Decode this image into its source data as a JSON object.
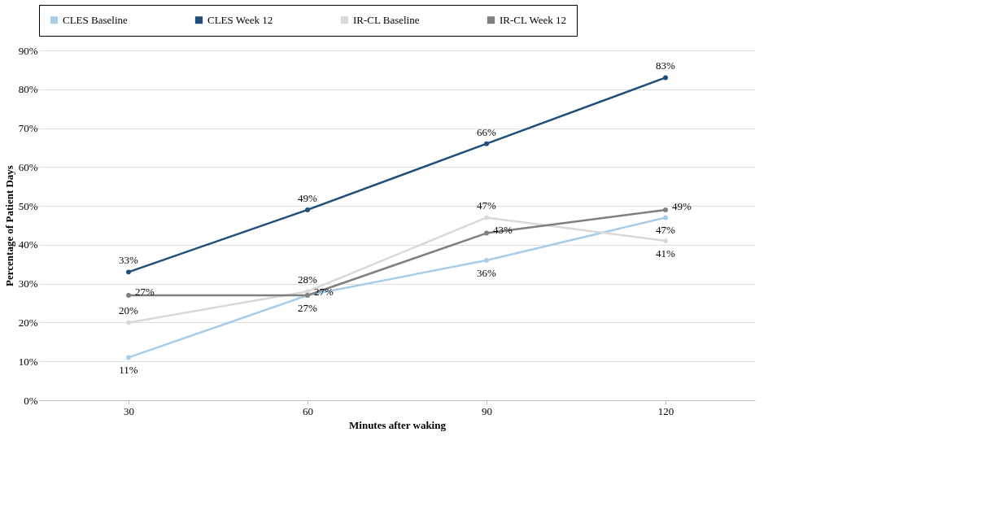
{
  "chart_data": {
    "type": "line",
    "xlabel": "Minutes after waking",
    "ylabel": "Percentage of Patient Days",
    "categories": [
      "30",
      "60",
      "90",
      "120"
    ],
    "series": [
      {
        "name": "CLES Baseline",
        "color": "#a9cde9",
        "values": [
          11,
          27,
          36,
          47
        ],
        "value_labels": [
          "11%",
          "27%",
          "36%",
          "47%"
        ]
      },
      {
        "name": "CLES Week 12",
        "color": "#1f4e79",
        "values": [
          33,
          49,
          66,
          83
        ],
        "value_labels": [
          "33%",
          "49%",
          "66%",
          "83%"
        ]
      },
      {
        "name": "IR-CL Baseline",
        "color": "#d9d9d9",
        "values": [
          20,
          28,
          47,
          41
        ],
        "value_labels": [
          "20%",
          "28%",
          "47%",
          "41%"
        ]
      },
      {
        "name": "IR-CL Week 12",
        "color": "#7f7f7f",
        "values": [
          27,
          27,
          43,
          49
        ],
        "value_labels": [
          "27%",
          "27%",
          "43%",
          "49%"
        ]
      }
    ],
    "ylim": [
      0,
      90
    ],
    "yticks": [
      {
        "value": 0,
        "label": "0%"
      },
      {
        "value": 10,
        "label": "10%"
      },
      {
        "value": 20,
        "label": "20%"
      },
      {
        "value": 30,
        "label": "30%"
      },
      {
        "value": 40,
        "label": "40%"
      },
      {
        "value": 50,
        "label": "50%"
      },
      {
        "value": 60,
        "label": "60%"
      },
      {
        "value": 70,
        "label": "70%"
      },
      {
        "value": 80,
        "label": "80%"
      },
      {
        "value": 90,
        "label": "90%"
      }
    ],
    "grid": "y",
    "legend": "top",
    "marker": "circle",
    "line_style": "solid"
  }
}
